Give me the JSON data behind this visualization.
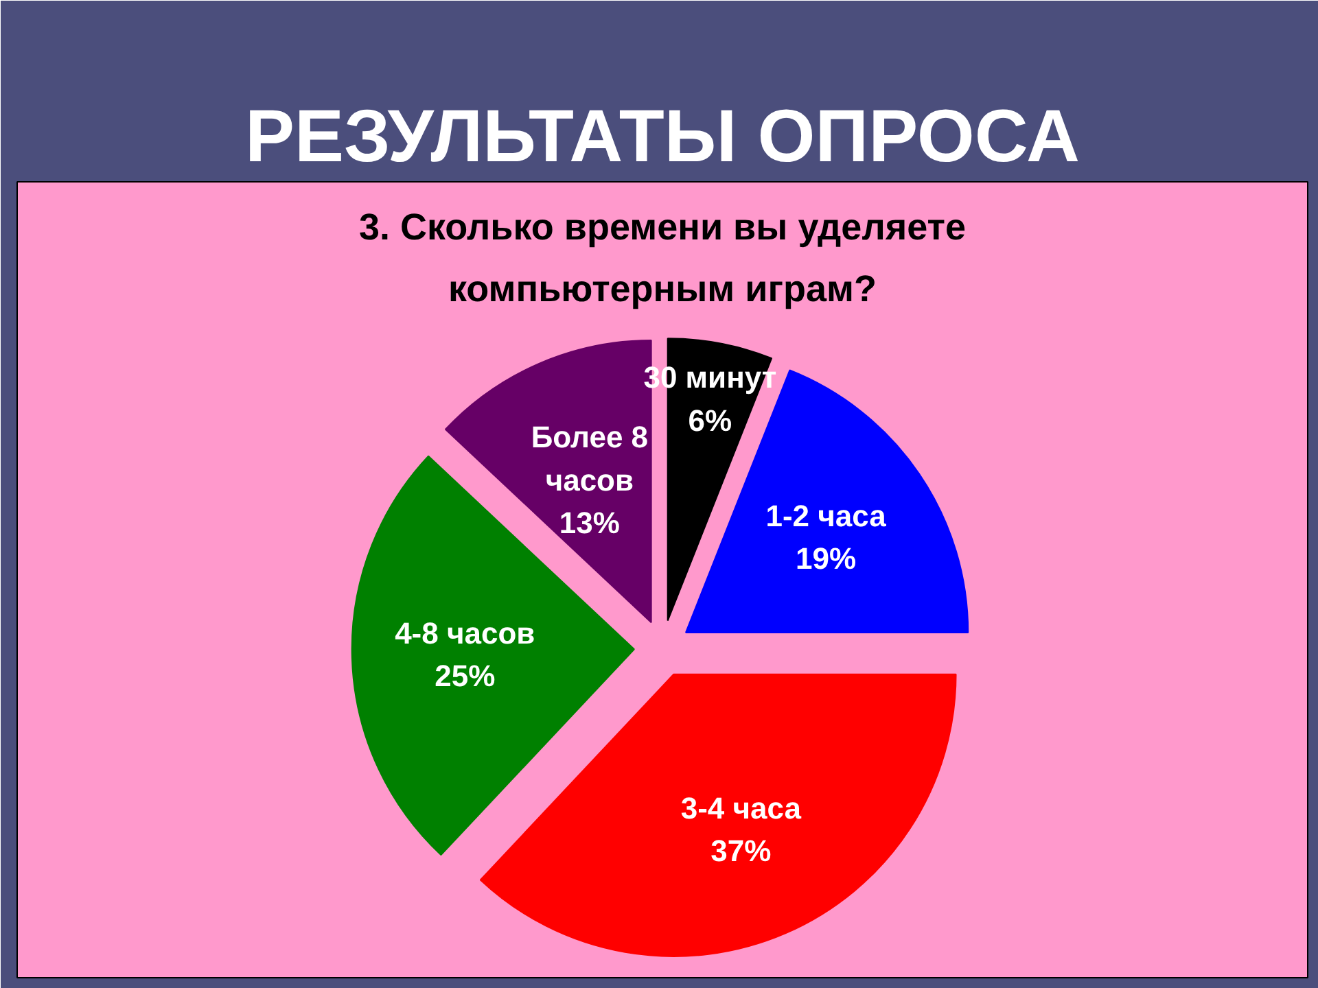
{
  "chart_data": {
    "type": "pie",
    "title": "РЕЗУЛЬТАТЫ ОПРОСА",
    "subtitle": "3. Сколько времени вы уделяете компьютерным играм?",
    "categories": [
      "30 минут",
      "1-2 часа",
      "3-4 часа",
      "4-8 часов",
      "Более 8 часов"
    ],
    "values": [
      6,
      19,
      37,
      25,
      13
    ],
    "value_labels": [
      "6%",
      "19%",
      "37%",
      "25%",
      "13%"
    ],
    "colors": [
      "#000000",
      "#0000ff",
      "#ff0000",
      "#008000",
      "#660066"
    ]
  }
}
